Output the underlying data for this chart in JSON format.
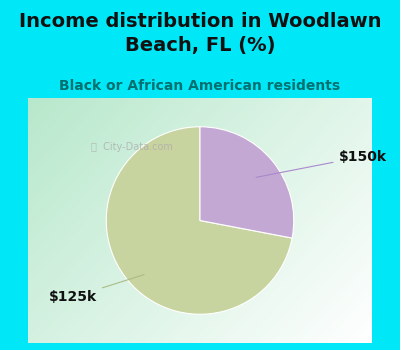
{
  "title": "Income distribution in Woodlawn\nBeach, FL (%)",
  "subtitle": "Black or African American residents",
  "slices": [
    72,
    28
  ],
  "labels": [
    "$125k",
    "$150k"
  ],
  "colors": [
    "#c8d4a0",
    "#c4a8d4"
  ],
  "background_color": "#00e8f8",
  "title_fontsize": 14,
  "subtitle_fontsize": 10,
  "label_fontsize": 10,
  "startangle": 90
}
